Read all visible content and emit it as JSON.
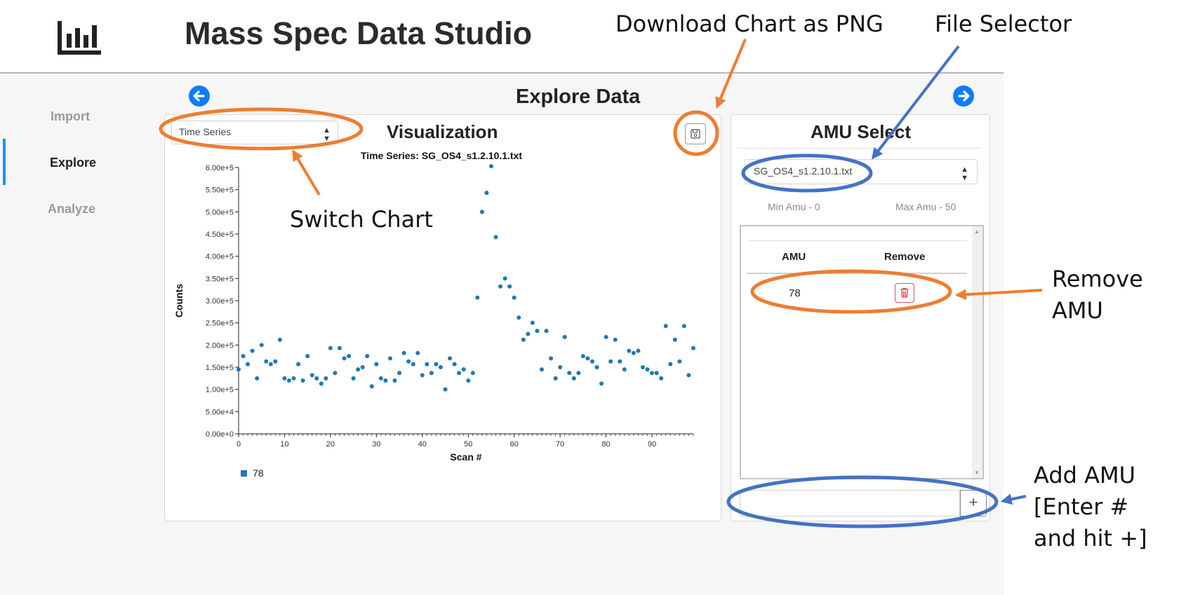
{
  "app": {
    "title": "Mass Spec Data Studio"
  },
  "sidebar": {
    "items": [
      {
        "label": "Import",
        "active": false
      },
      {
        "label": "Explore",
        "active": true
      },
      {
        "label": "Analyze",
        "active": false
      }
    ]
  },
  "page": {
    "heading": "Explore Data",
    "back_icon": "arrow-left-icon",
    "forward_icon": "arrow-right-icon"
  },
  "visualization": {
    "heading": "Visualization",
    "chart_type_select": {
      "value": "Time Series"
    },
    "download_icon": "floppy-disk-icon"
  },
  "amu_select": {
    "heading": "AMU Select",
    "file_select": {
      "value": "SG_OS4_s1.2.10.1.txt"
    },
    "min_amu": "Min Amu - 0",
    "max_amu": "Max Amu - 50",
    "table": {
      "columns": [
        "AMU",
        "Remove"
      ],
      "rows": [
        {
          "amu": "78"
        }
      ]
    },
    "add_input": {
      "value": "",
      "placeholder": ""
    },
    "add_button_label": "+"
  },
  "annotations": {
    "download": "Download Chart as PNG",
    "file_selector": "File Selector",
    "switch_chart": "Switch Chart",
    "remove_amu": [
      "Remove",
      "AMU"
    ],
    "add_amu": [
      "Add AMU",
      "[Enter #",
      "and hit +]"
    ]
  },
  "colors": {
    "accent": "#0d7bff",
    "series": "#1f77b4",
    "annotation_orange": "#ed7d31",
    "annotation_blue": "#4472c4",
    "danger": "#dc3545"
  },
  "chart_data": {
    "type": "scatter",
    "title": "Time Series: SG_OS4_s1.2.10.1.txt",
    "xlabel": "Scan #",
    "ylabel": "Counts",
    "xlim": [
      0,
      99
    ],
    "ylim": [
      0,
      600000
    ],
    "xticks": [
      0,
      10,
      20,
      30,
      40,
      50,
      60,
      70,
      80,
      90
    ],
    "yticks": [
      "0.00e+0",
      "5.00e+4",
      "1.00e+5",
      "1.50e+5",
      "2.00e+5",
      "2.50e+5",
      "3.00e+5",
      "3.50e+5",
      "4.00e+5",
      "4.50e+5",
      "5.00e+5",
      "5.50e+5",
      "6.00e+5"
    ],
    "legend": "bottom-left",
    "series": [
      {
        "name": "78",
        "x": [
          0,
          1,
          2,
          3,
          4,
          5,
          6,
          7,
          8,
          9,
          10,
          11,
          12,
          13,
          14,
          15,
          16,
          17,
          18,
          19,
          20,
          21,
          22,
          23,
          24,
          25,
          26,
          27,
          28,
          29,
          30,
          31,
          32,
          33,
          34,
          35,
          36,
          37,
          38,
          39,
          40,
          41,
          42,
          43,
          44,
          45,
          46,
          47,
          48,
          49,
          50,
          51,
          52,
          53,
          54,
          55,
          56,
          57,
          58,
          59,
          60,
          61,
          62,
          63,
          64,
          65,
          66,
          67,
          68,
          69,
          70,
          71,
          72,
          73,
          74,
          75,
          76,
          77,
          78,
          79,
          80,
          81,
          82,
          83,
          84,
          85,
          86,
          87,
          88,
          89,
          90,
          91,
          92,
          93,
          94,
          95,
          96,
          97,
          98,
          99
        ],
        "values": [
          145000,
          175000,
          157000,
          187000,
          125000,
          200000,
          163000,
          157000,
          163000,
          212000,
          125000,
          120000,
          125000,
          157000,
          120000,
          175000,
          132000,
          125000,
          113000,
          125000,
          193000,
          137000,
          193000,
          170000,
          175000,
          125000,
          145000,
          150000,
          175000,
          107000,
          157000,
          125000,
          120000,
          170000,
          120000,
          137000,
          182000,
          163000,
          157000,
          182000,
          132000,
          157000,
          137000,
          157000,
          150000,
          100000,
          170000,
          157000,
          137000,
          145000,
          120000,
          137000,
          307000,
          500000,
          543000,
          603000,
          443000,
          332000,
          350000,
          332000,
          307000,
          262000,
          212000,
          225000,
          250000,
          232000,
          145000,
          232000,
          170000,
          125000,
          150000,
          218000,
          137000,
          125000,
          137000,
          175000,
          170000,
          163000,
          150000,
          113000,
          218000,
          163000,
          212000,
          163000,
          145000,
          187000,
          182000,
          187000,
          150000,
          145000,
          137000,
          137000,
          125000,
          243000,
          157000,
          212000,
          163000,
          243000,
          132000,
          193000
        ]
      }
    ]
  }
}
